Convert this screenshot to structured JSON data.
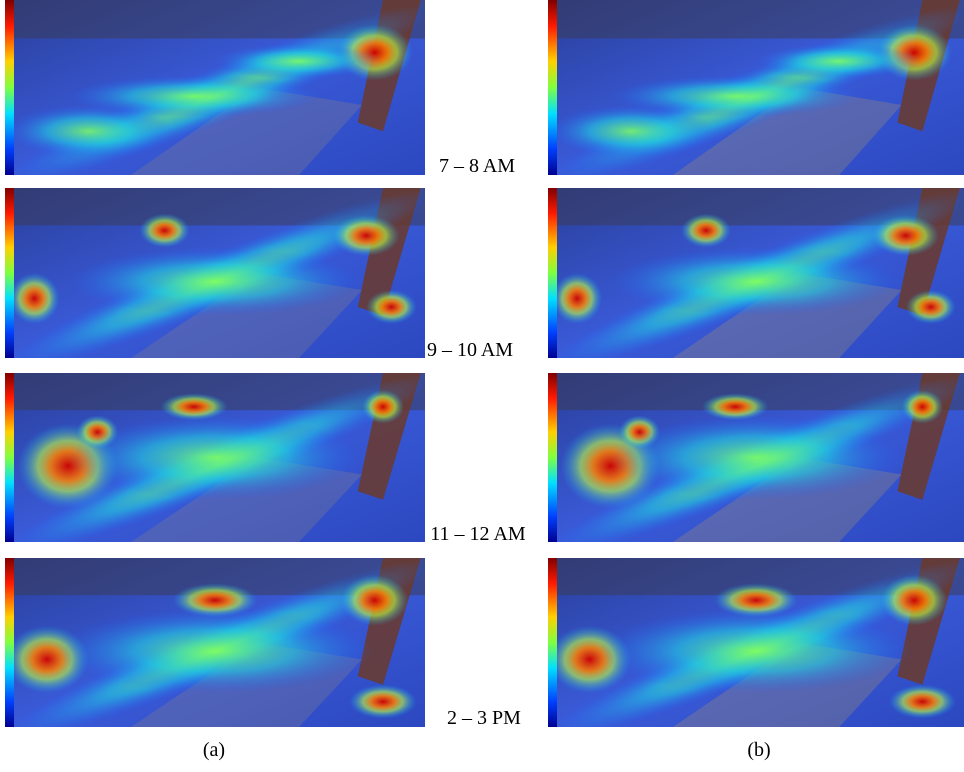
{
  "time_labels": [
    "7 – 8 AM",
    "9 – 10 AM",
    "11 – 12 AM",
    "2 – 3 PM"
  ],
  "panel_labels": [
    "(a)",
    "(b)"
  ]
}
